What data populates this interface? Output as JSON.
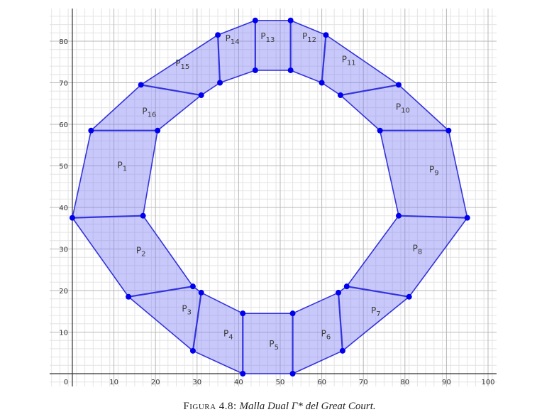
{
  "figure": {
    "caption_label": "Figura 4.8:",
    "caption_text": "Malla Dual Γ* del Great Court."
  },
  "axes": {
    "x_ticks": [
      0,
      10,
      20,
      30,
      40,
      50,
      60,
      70,
      80,
      90,
      100
    ],
    "y_ticks": [
      10,
      20,
      30,
      40,
      50,
      60,
      70,
      80
    ],
    "x_range": [
      -5,
      102
    ],
    "y_range": [
      -3,
      88
    ],
    "minor_grid_step": 2,
    "major_grid_step": 10
  },
  "colors": {
    "fill": "#7b7bf5",
    "edge": "#3333dd",
    "vertex": "#0000ee",
    "grid_major": "#b8b8b8",
    "grid_minor": "#e4e4e4"
  },
  "outer_vertices": [
    [
      0,
      37.5
    ],
    [
      13.5,
      18.5
    ],
    [
      29,
      5.5
    ],
    [
      41,
      0
    ],
    [
      53,
      0
    ],
    [
      65,
      5.5
    ],
    [
      81,
      18.5
    ],
    [
      95,
      37.5
    ],
    [
      90.5,
      58.5
    ],
    [
      78.5,
      69.5
    ],
    [
      61,
      81.5
    ],
    [
      52.5,
      85
    ],
    [
      44,
      85
    ],
    [
      35,
      81.5
    ],
    [
      16.5,
      69.5
    ],
    [
      4.5,
      58.5
    ]
  ],
  "inner_vertices": [
    [
      17,
      38
    ],
    [
      29,
      21
    ],
    [
      31,
      19.5
    ],
    [
      41,
      14.5
    ],
    [
      53,
      14.5
    ],
    [
      64,
      19.5
    ],
    [
      66,
      21
    ],
    [
      78.5,
      38
    ],
    [
      74,
      58.5
    ],
    [
      64.5,
      67
    ],
    [
      60,
      70
    ],
    [
      52.5,
      73
    ],
    [
      44,
      73
    ],
    [
      35.5,
      70
    ],
    [
      31,
      67
    ],
    [
      20.5,
      58.5
    ]
  ],
  "faces": [
    {
      "name": "P",
      "sub": "1",
      "x": 12,
      "y": 49.5,
      "outer": [
        15,
        0
      ],
      "inner": [
        15,
        0
      ]
    },
    {
      "name": "P",
      "sub": "2",
      "x": 16.5,
      "y": 29,
      "outer": [
        0,
        1
      ],
      "inner": [
        0,
        1
      ]
    },
    {
      "name": "P",
      "sub": "3",
      "x": 27.5,
      "y": 15,
      "outer": [
        1,
        2
      ],
      "inner": [
        1,
        2
      ]
    },
    {
      "name": "P",
      "sub": "4",
      "x": 37.5,
      "y": 9,
      "outer": [
        2,
        3
      ],
      "inner": [
        2,
        3
      ]
    },
    {
      "name": "P",
      "sub": "5",
      "x": 48.5,
      "y": 6.5,
      "outer": [
        3,
        4
      ],
      "inner": [
        3,
        4
      ]
    },
    {
      "name": "P",
      "sub": "6",
      "x": 61,
      "y": 9,
      "outer": [
        4,
        5
      ],
      "inner": [
        4,
        5
      ]
    },
    {
      "name": "P",
      "sub": "7",
      "x": 73,
      "y": 14.5,
      "outer": [
        5,
        6
      ],
      "inner": [
        5,
        6
      ]
    },
    {
      "name": "P",
      "sub": "8",
      "x": 83,
      "y": 29.5,
      "outer": [
        6,
        7
      ],
      "inner": [
        6,
        7
      ]
    },
    {
      "name": "P",
      "sub": "9",
      "x": 87,
      "y": 48.5,
      "outer": [
        7,
        8
      ],
      "inner": [
        7,
        8
      ]
    },
    {
      "name": "P",
      "sub": "10",
      "x": 79.5,
      "y": 63.5,
      "outer": [
        8,
        9
      ],
      "inner": [
        8,
        9
      ]
    },
    {
      "name": "P",
      "sub": "11",
      "x": 66.5,
      "y": 75,
      "outer": [
        9,
        10
      ],
      "inner": [
        9,
        10
      ]
    },
    {
      "name": "P",
      "sub": "12",
      "x": 57,
      "y": 80.5,
      "outer": [
        10,
        11
      ],
      "inner": [
        10,
        11
      ]
    },
    {
      "name": "P",
      "sub": "13",
      "x": 47,
      "y": 80.5,
      "outer": [
        11,
        12
      ],
      "inner": [
        11,
        12
      ]
    },
    {
      "name": "P",
      "sub": "14",
      "x": 38.5,
      "y": 80,
      "outer": [
        12,
        13
      ],
      "inner": [
        12,
        13
      ]
    },
    {
      "name": "P",
      "sub": "15",
      "x": 26.5,
      "y": 74,
      "outer": [
        13,
        14
      ],
      "inner": [
        13,
        14
      ]
    },
    {
      "name": "P",
      "sub": "16",
      "x": 18.5,
      "y": 62.5,
      "outer": [
        14,
        15
      ],
      "inner": [
        14,
        15
      ]
    }
  ]
}
